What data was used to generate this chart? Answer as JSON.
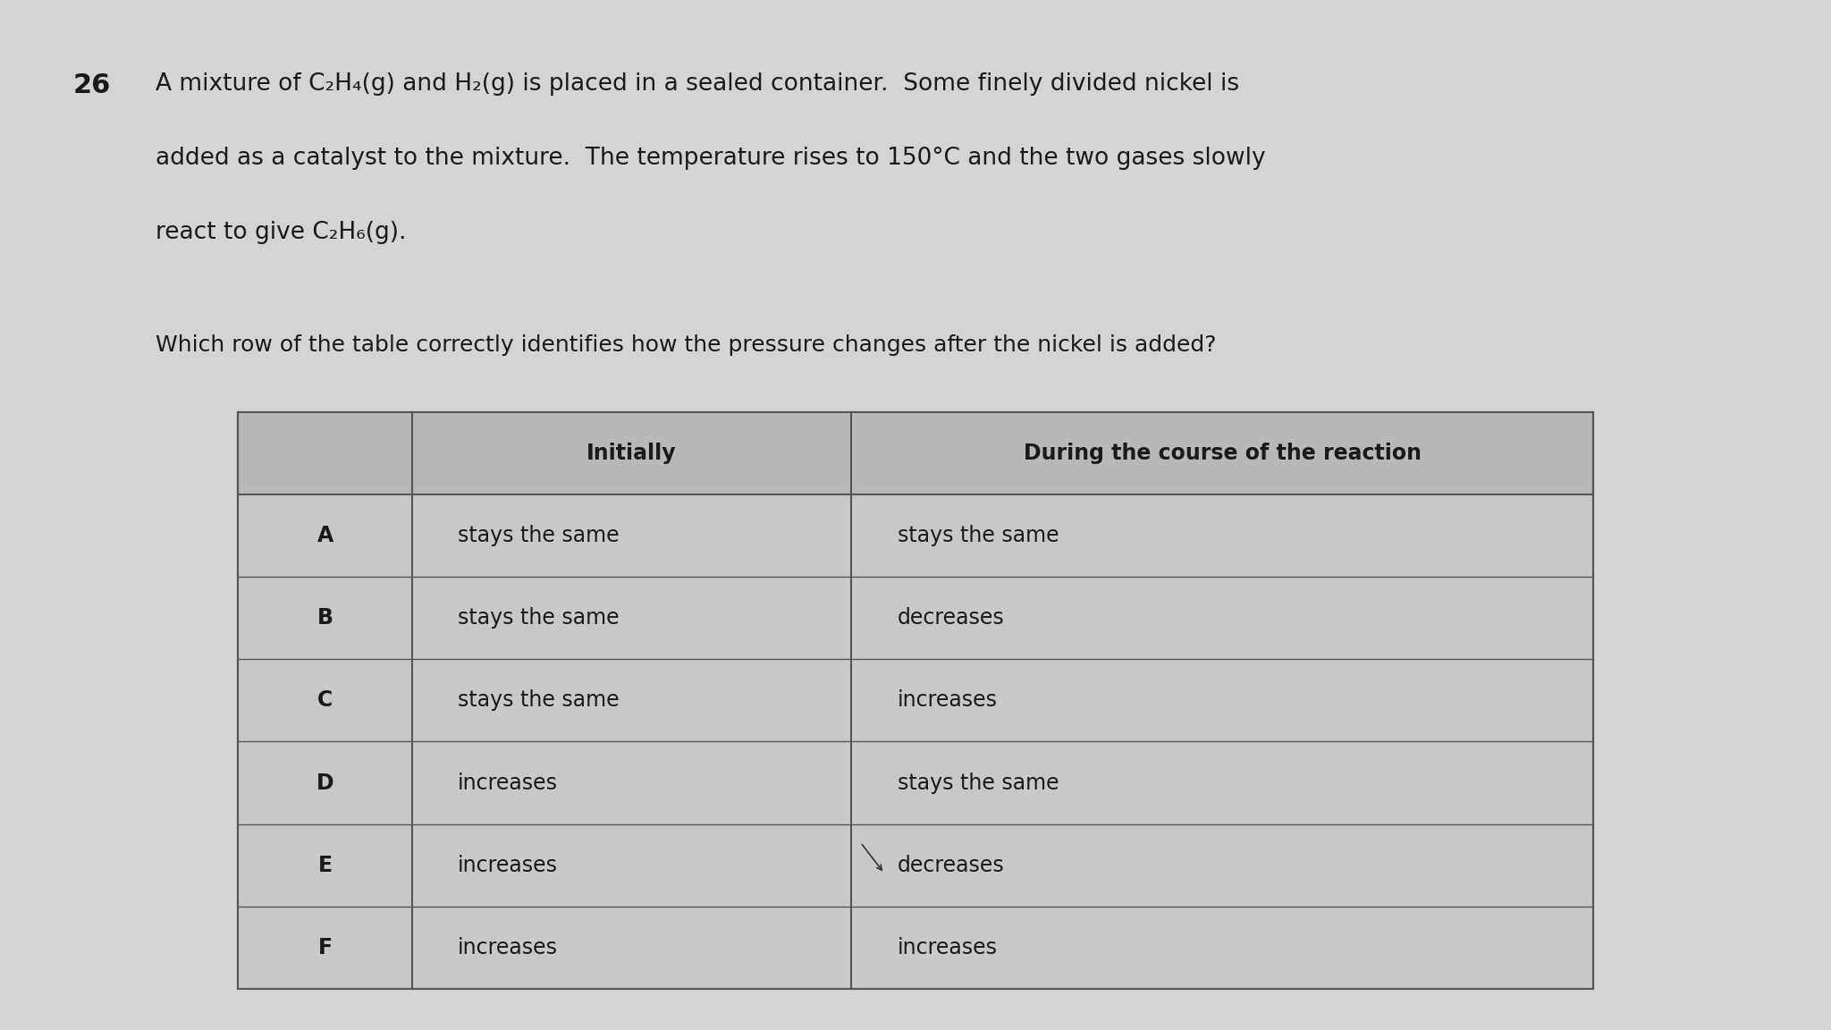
{
  "question_number": "26",
  "question_text_line1": "A mixture of C₂H₄(g) and H₂(g) is placed in a sealed container.  Some finely divided nickel is",
  "question_text_line2": "added as a catalyst to the mixture.  The temperature rises to 150°C and the two gases slowly",
  "question_text_line3": "react to give C₂H₆(g).",
  "question_sub": "Which row of the table correctly identifies how the pressure changes after the nickel is added?",
  "col1_header": "Initially",
  "col2_header": "During the course of the reaction",
  "rows": [
    {
      "label": "A",
      "col1": "stays the same",
      "col2": "stays the same"
    },
    {
      "label": "B",
      "col1": "stays the same",
      "col2": "decreases"
    },
    {
      "label": "C",
      "col1": "stays the same",
      "col2": "increases"
    },
    {
      "label": "D",
      "col1": "increases",
      "col2": "stays the same"
    },
    {
      "label": "E",
      "col1": "increases",
      "col2": "decreases"
    },
    {
      "label": "F",
      "col1": "increases",
      "col2": "increases"
    }
  ],
  "bg_color": "#d4d4d4",
  "table_bg": "#c8c8c8",
  "header_bg": "#b8b8b8",
  "text_color": "#1a1a1a",
  "border_color": "#555555",
  "font_size_question": 19,
  "font_size_qnum": 22,
  "font_size_sub": 18,
  "font_size_table": 17,
  "font_size_header": 17
}
